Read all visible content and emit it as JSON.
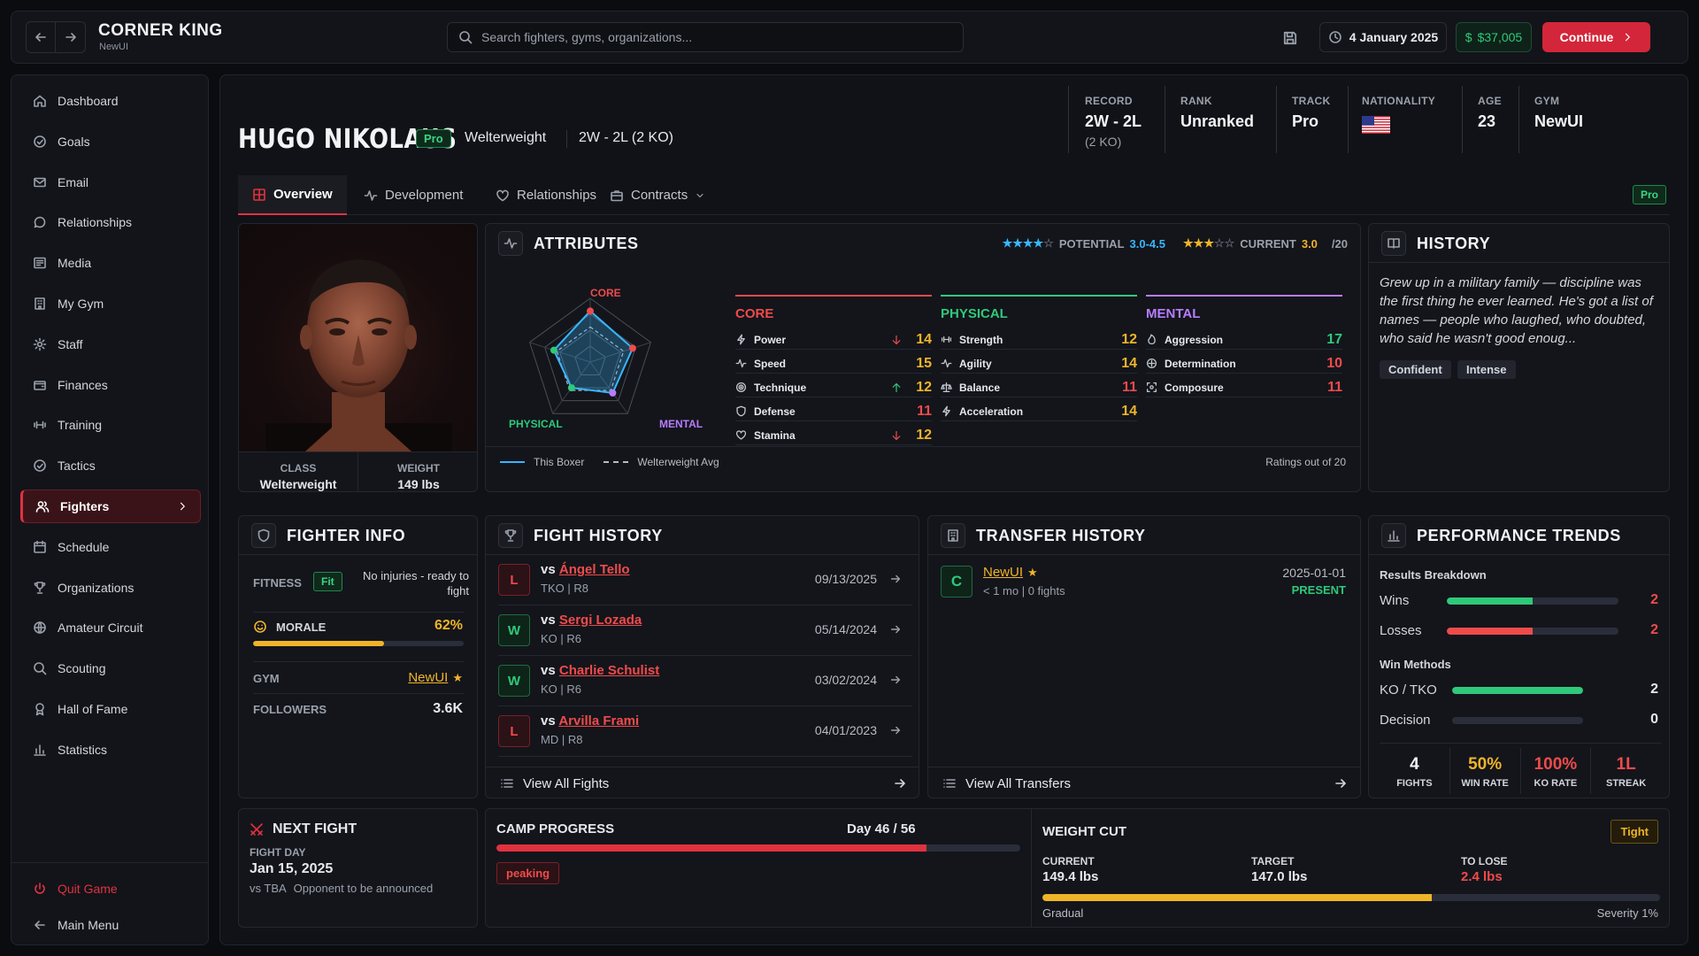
{
  "app": {
    "title": "CORNER KING",
    "subtitle": "NewUI"
  },
  "search": {
    "placeholder": "Search fighters, gyms, organizations..."
  },
  "topbar": {
    "date": "4 January 2025",
    "cash": "$37,005",
    "continue_label": "Continue"
  },
  "sidebar": {
    "items": [
      {
        "label": "Dashboard",
        "icon": "home-icon"
      },
      {
        "label": "Goals",
        "icon": "target-icon"
      },
      {
        "label": "Email",
        "icon": "mail-icon"
      },
      {
        "label": "Relationships",
        "icon": "chat-icon"
      },
      {
        "label": "Media",
        "icon": "newspaper-icon"
      },
      {
        "label": "My Gym",
        "icon": "building-icon"
      },
      {
        "label": "Staff",
        "icon": "gear-icon"
      },
      {
        "label": "Finances",
        "icon": "wallet-icon"
      },
      {
        "label": "Training",
        "icon": "dumbbell-icon"
      },
      {
        "label": "Tactics",
        "icon": "target-icon"
      },
      {
        "label": "Fighters",
        "icon": "users-icon",
        "active": true
      },
      {
        "label": "Schedule",
        "icon": "calendar-icon"
      },
      {
        "label": "Organizations",
        "icon": "trophy-icon"
      },
      {
        "label": "Amateur Circuit",
        "icon": "globe-icon"
      },
      {
        "label": "Scouting",
        "icon": "search-icon"
      },
      {
        "label": "Hall of Fame",
        "icon": "award-icon"
      },
      {
        "label": "Statistics",
        "icon": "bar-chart-icon"
      }
    ],
    "quit_label": "Quit Game",
    "main_menu_label": "Main Menu"
  },
  "fighter": {
    "name": "HUGO NIKOLAUS",
    "badge": "Pro",
    "weight_class": "Welterweight",
    "record_summary": "2W - 2L (2 KO)",
    "stats": {
      "record_label": "RECORD",
      "record": "2W - 2L",
      "record_ko": "(2 KO)",
      "rank_label": "RANK",
      "rank": "Unranked",
      "track_label": "TRACK",
      "track": "Pro",
      "nationality_label": "NATIONALITY",
      "nationality_flag": "us-flag-icon",
      "age_label": "AGE",
      "age": "23",
      "gym_label": "GYM",
      "gym": "NewUI"
    }
  },
  "tabs": [
    {
      "label": "Overview",
      "icon": "grid-icon",
      "active": true
    },
    {
      "label": "Development",
      "icon": "activity-icon"
    },
    {
      "label": "Relationships",
      "icon": "heart-icon"
    },
    {
      "label": "Contracts",
      "icon": "briefcase-icon"
    }
  ],
  "tab_badge": "Pro",
  "portrait": {
    "class_label": "CLASS",
    "class": "Welterweight",
    "weight_label": "WEIGHT",
    "weight": "149 lbs"
  },
  "attributes": {
    "title": "ATTRIBUTES",
    "potential_label": "POTENTIAL",
    "potential": "3.0-4.5",
    "potential_stars": 4,
    "current_label": "CURRENT",
    "current": "3.0",
    "current_stars": 3,
    "scale": "/20",
    "radar_labels": {
      "core": "CORE",
      "physical": "PHYSICAL",
      "mental": "MENTAL"
    },
    "radar": {
      "this_boxer": [
        16,
        14,
        12,
        10,
        12
      ],
      "welterweight_avg": [
        11,
        11,
        11,
        11,
        11
      ],
      "max": 20
    },
    "legend_this": "This Boxer",
    "legend_avg": "Welterweight Avg",
    "footer_note": "Ratings out of 20",
    "groups": [
      {
        "name": "CORE",
        "color": "#ef4b4b",
        "items": [
          {
            "label": "Power",
            "value": 14,
            "trend": "down"
          },
          {
            "label": "Speed",
            "value": 15,
            "trend": ""
          },
          {
            "label": "Technique",
            "value": 12,
            "trend": "up"
          },
          {
            "label": "Defense",
            "value": 11,
            "trend": ""
          },
          {
            "label": "Stamina",
            "value": 12,
            "trend": "down"
          }
        ]
      },
      {
        "name": "PHYSICAL",
        "color": "#2fc97a",
        "items": [
          {
            "label": "Strength",
            "value": 12
          },
          {
            "label": "Agility",
            "value": 14
          },
          {
            "label": "Balance",
            "value": 11
          },
          {
            "label": "Acceleration",
            "value": 14
          }
        ]
      },
      {
        "name": "MENTAL",
        "color": "#b97cff",
        "items": [
          {
            "label": "Aggression",
            "value": 17
          },
          {
            "label": "Determination",
            "value": 10
          },
          {
            "label": "Composure",
            "value": 11
          }
        ]
      }
    ]
  },
  "history": {
    "title": "HISTORY",
    "text": "Grew up in a military family — discipline was the first thing he ever learned. He's got a list of names — people who laughed, who doubted, who said he wasn't good enoug...",
    "tags": [
      "Confident",
      "Intense"
    ]
  },
  "fighter_info": {
    "title": "FIGHTER INFO",
    "fitness_label": "FITNESS",
    "fitness_badge": "Fit",
    "fitness_note": "No injuries - ready to fight",
    "morale_label": "MORALE",
    "morale": "62%",
    "morale_fraction": 0.62,
    "gym_label": "GYM",
    "gym": "NewUI",
    "followers_label": "FOLLOWERS",
    "followers": "3.6K"
  },
  "fight_history": {
    "title": "FIGHT HISTORY",
    "fights": [
      {
        "result": "L",
        "vs": "vs",
        "opponent": "Ángel Tello",
        "method": "TKO | R8",
        "date": "09/13/2025"
      },
      {
        "result": "W",
        "vs": "vs",
        "opponent": "Sergi Lozada",
        "method": "KO | R6",
        "date": "05/14/2024"
      },
      {
        "result": "W",
        "vs": "vs",
        "opponent": "Charlie Schulist",
        "method": "KO | R6",
        "date": "03/02/2024"
      },
      {
        "result": "L",
        "vs": "vs",
        "opponent": "Arvilla Frami",
        "method": "MD | R8",
        "date": "04/01/2023"
      }
    ],
    "view_all": "View All Fights"
  },
  "transfer_history": {
    "title": "TRANSFER HISTORY",
    "transfers": [
      {
        "badge": "C",
        "gym": "NewUI",
        "detail": "< 1 mo | 0 fights",
        "date": "2025-01-01",
        "status": "PRESENT"
      }
    ],
    "view_all": "View All Transfers"
  },
  "performance": {
    "title": "PERFORMANCE TRENDS",
    "results_label": "Results Breakdown",
    "wins_label": "Wins",
    "wins": "2",
    "wins_fraction": 0.5,
    "losses_label": "Losses",
    "losses": "2",
    "losses_fraction": 0.5,
    "methods_label": "Win Methods",
    "ko_label": "KO / TKO",
    "ko": "2",
    "ko_fraction": 1.0,
    "decision_label": "Decision",
    "decision": "0",
    "decision_fraction": 0,
    "summary": [
      {
        "value": "4",
        "label": "FIGHTS",
        "color": "#f2f3f5"
      },
      {
        "value": "50%",
        "label": "WIN RATE",
        "color": "#f0b429"
      },
      {
        "value": "100%",
        "label": "KO RATE",
        "color": "#ef4b4b"
      },
      {
        "value": "1L",
        "label": "STREAK",
        "color": "#ef4b4b"
      }
    ]
  },
  "next_fight": {
    "title": "NEXT FIGHT",
    "day_label": "FIGHT DAY",
    "date": "Jan 15, 2025",
    "vs": "vs TBA",
    "note": "Opponent to be announced"
  },
  "camp": {
    "title": "CAMP PROGRESS",
    "day": "Day 46 / 56",
    "fraction": 0.8214,
    "phase": "peaking"
  },
  "weight_cut": {
    "title": "WEIGHT CUT",
    "badge": "Tight",
    "current_label": "CURRENT",
    "current": "149.4 lbs",
    "target_label": "TARGET",
    "target": "147.0 lbs",
    "to_lose_label": "TO LOSE",
    "to_lose": "2.4 lbs",
    "fraction": 0.63,
    "left_note": "Gradual",
    "right_note": "Severity 1%"
  },
  "colors": {
    "accent": "#e0323f",
    "green": "#2fc97a",
    "orange": "#f0b429",
    "blue": "#38b6ff",
    "purple": "#b97cff"
  }
}
